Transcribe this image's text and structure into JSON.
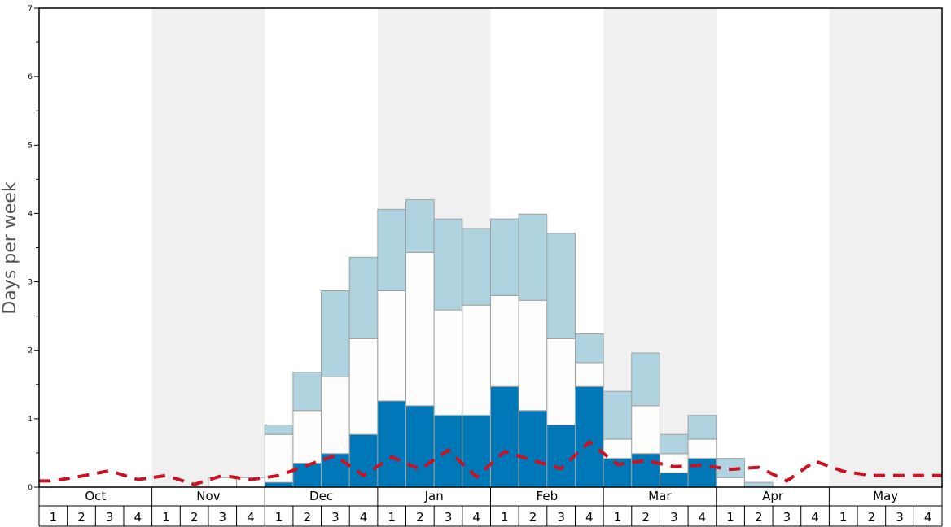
{
  "chart_data": {
    "type": "bar",
    "ylabel": "Days per week",
    "ylim": [
      0,
      7
    ],
    "yticks": [
      "0",
      "1",
      "2",
      "3",
      "4",
      "5",
      "6",
      "7"
    ],
    "months": [
      "Oct",
      "Nov",
      "Dec",
      "Jan",
      "Feb",
      "Mar",
      "Apr",
      "May"
    ],
    "weeks": [
      "1",
      "2",
      "3",
      "4"
    ],
    "stacked": true,
    "grid": false,
    "legend": "none",
    "colors": {
      "bottom_segment": "#0077b6",
      "middle_segment": "#fdfdfb",
      "top_segment": "#afd4e0",
      "bar_border": "#a0a0a0",
      "dashed_line": "#cc1122",
      "alt_month_band": "#f0f0f0"
    },
    "series": [
      {
        "values": [
          0,
          0,
          0,
          0,
          0,
          0,
          0,
          0,
          0.07,
          0.35,
          0.49,
          0.77,
          1.26,
          1.19,
          1.05,
          1.05,
          1.47,
          1.12,
          0.91,
          1.47,
          0.42,
          0.49,
          0.21,
          0.42,
          0,
          0,
          0,
          0,
          0,
          0,
          0,
          0
        ]
      },
      {
        "values": [
          0,
          0,
          0,
          0,
          0,
          0,
          0.14,
          0.14,
          0.7,
          0.77,
          1.12,
          1.4,
          1.61,
          2.24,
          1.54,
          1.61,
          1.33,
          1.61,
          1.26,
          0.35,
          0.28,
          0.7,
          0.28,
          0.28,
          0.14,
          0,
          0,
          0,
          0,
          0,
          0,
          0
        ]
      },
      {
        "values": [
          0,
          0,
          0,
          0,
          0,
          0,
          0,
          0,
          0.14,
          0.56,
          1.26,
          1.19,
          1.19,
          0.77,
          1.33,
          1.12,
          1.12,
          1.26,
          1.54,
          0.42,
          0.7,
          0.77,
          0.28,
          0.35,
          0.28,
          0.07,
          0,
          0,
          0,
          0,
          0,
          0
        ]
      },
      {
        "line_style": "dashed",
        "values": [
          0.09,
          0.16,
          0.24,
          0.11,
          0.17,
          0.04,
          0.17,
          0.11,
          0.17,
          0.32,
          0.46,
          0.17,
          0.44,
          0.26,
          0.54,
          0.15,
          0.52,
          0.39,
          0.27,
          0.66,
          0.33,
          0.39,
          0.3,
          0.32,
          0.26,
          0.29,
          0.09,
          0.38,
          0.23,
          0.17,
          0.17,
          0.17
        ]
      }
    ]
  }
}
